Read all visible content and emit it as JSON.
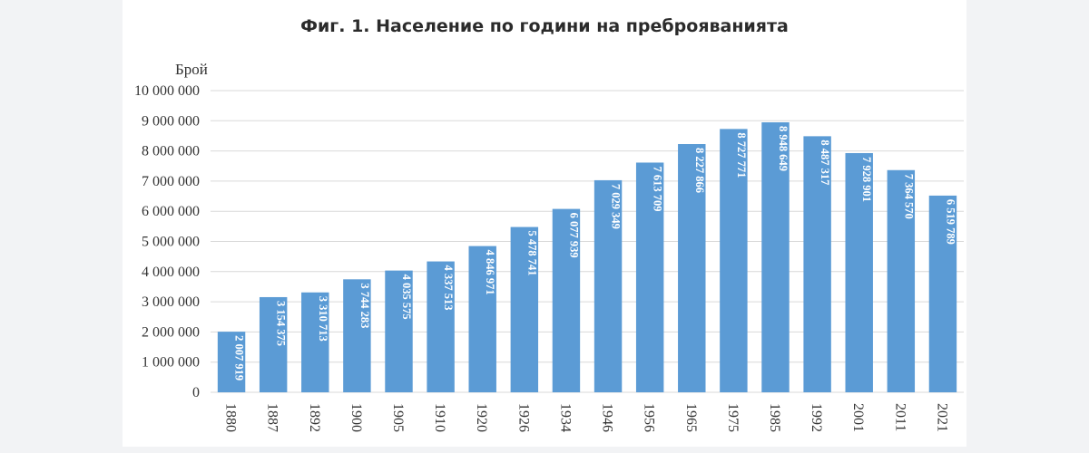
{
  "chart_data": {
    "type": "bar",
    "title": "Фиг. 1. Население по години на преброяванията",
    "ylabel": "Брой",
    "xlabel": "",
    "ylim": [
      0,
      10000000
    ],
    "y_ticks": [
      0,
      1000000,
      2000000,
      3000000,
      4000000,
      5000000,
      6000000,
      7000000,
      8000000,
      9000000,
      10000000
    ],
    "y_tick_labels": [
      "0",
      "1 000 000",
      "2 000 000",
      "3 000 000",
      "4 000 000",
      "5 000 000",
      "6 000 000",
      "7 000 000",
      "8 000 000",
      "9 000 000",
      "10 000 000"
    ],
    "categories": [
      "1880",
      "1887",
      "1892",
      "1900",
      "1905",
      "1910",
      "1920",
      "1926",
      "1934",
      "1946",
      "1956",
      "1965",
      "1975",
      "1985",
      "1992",
      "2001",
      "2011",
      "2021"
    ],
    "values": [
      2007919,
      3154375,
      3310713,
      3744283,
      4035575,
      4337513,
      4846971,
      5478741,
      6077939,
      7029349,
      7613709,
      8227866,
      8727771,
      8948649,
      8487317,
      7928901,
      7364570,
      6519789
    ],
    "value_labels": [
      "2 007 919",
      "3 154 375",
      "3 310 713",
      "3 744 283",
      "4 035 575",
      "4 337 513",
      "4 846 971",
      "5 478 741",
      "6 077 939",
      "7 029 349",
      "7 613 709",
      "8 227 866",
      "8 727 771",
      "8 948 649",
      "8 487 317",
      "7 928 901",
      "7 364 570",
      "6 519 789"
    ],
    "grid": true,
    "legend": "none",
    "colors": {
      "bar": "#5b9bd5",
      "grid": "#d9d9d9"
    }
  }
}
